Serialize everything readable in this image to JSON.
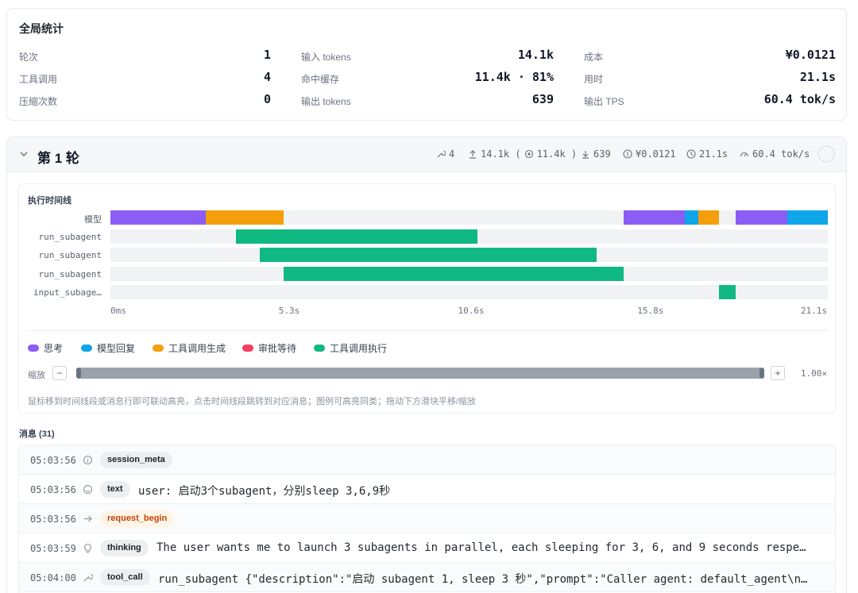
{
  "global": {
    "title": "全局统计",
    "stats": [
      {
        "label": "轮次",
        "value": "1"
      },
      {
        "label": "输入 tokens",
        "value": "14.1k"
      },
      {
        "label": "成本",
        "value": "¥0.0121"
      },
      {
        "label": "工具调用",
        "value": "4"
      },
      {
        "label": "命中缓存",
        "value": "11.4k · 81%"
      },
      {
        "label": "用时",
        "value": "21.1s"
      },
      {
        "label": "压缩次数",
        "value": "0"
      },
      {
        "label": "输出 tokens",
        "value": "639"
      },
      {
        "label": "输出 TPS",
        "value": "60.4 tok/s"
      }
    ]
  },
  "round": {
    "title": "第 1 轮",
    "meta": {
      "tools": "4",
      "input": "14.1k (",
      "cached": "11.4k )",
      "output": "639",
      "cost": "¥0.0121",
      "time": "21.1s",
      "tps": "60.4 tok/s"
    }
  },
  "timeline": {
    "title": "执行时间线",
    "total_seconds": 21.1,
    "rows": [
      {
        "label": "模型",
        "segments": [
          {
            "kind": "thinking",
            "start": 0.0,
            "end": 2.8
          },
          {
            "kind": "toolgen",
            "start": 2.8,
            "end": 5.1
          },
          {
            "kind": "thinking",
            "start": 15.1,
            "end": 16.9
          },
          {
            "kind": "reply",
            "start": 16.9,
            "end": 17.3
          },
          {
            "kind": "toolgen",
            "start": 17.3,
            "end": 17.9
          },
          {
            "kind": "thinking",
            "start": 18.4,
            "end": 19.9
          },
          {
            "kind": "reply",
            "start": 19.9,
            "end": 21.1
          }
        ]
      },
      {
        "label": "run_subagent",
        "segments": [
          {
            "kind": "toolexec",
            "start": 3.7,
            "end": 10.8
          }
        ]
      },
      {
        "label": "run_subagent",
        "segments": [
          {
            "kind": "toolexec",
            "start": 4.4,
            "end": 14.3
          }
        ]
      },
      {
        "label": "run_subagent",
        "segments": [
          {
            "kind": "toolexec",
            "start": 5.1,
            "end": 15.1
          }
        ]
      },
      {
        "label": "input_subage…",
        "segments": [
          {
            "kind": "toolexec",
            "start": 17.9,
            "end": 18.4
          }
        ]
      }
    ],
    "ticks": [
      "0ms",
      "5.3s",
      "10.6s",
      "15.8s",
      "21.1s"
    ],
    "legend": [
      {
        "key": "thinking",
        "label": "思考"
      },
      {
        "key": "reply",
        "label": "模型回复"
      },
      {
        "key": "toolgen",
        "label": "工具调用生成"
      },
      {
        "key": "approval",
        "label": "审批等待"
      },
      {
        "key": "toolexec",
        "label": "工具调用执行"
      }
    ],
    "colors": {
      "thinking": "#8b5cf6",
      "reply": "#0ea5e9",
      "toolgen": "#f59e0b",
      "approval": "#f43f5e",
      "toolexec": "#10b981"
    },
    "zoom_label": "缩放",
    "zoom_minus": "−",
    "zoom_plus": "+",
    "zoom_value": "1.00×",
    "zoom_fraction": 1.0,
    "hint": "鼠标移到时间线段或消息行即可联动高亮，点击时间线段跳转到对应消息；图例可高亮同类；拖动下方滑块平移/缩放"
  },
  "messages": {
    "title": "消息 (31)",
    "items": [
      {
        "time": "05:03:56",
        "icon": "info-icon",
        "tag": "session_meta",
        "tag_style": "plain",
        "text": ""
      },
      {
        "time": "05:03:56",
        "icon": "user-icon",
        "tag": "text",
        "tag_style": "plain",
        "text": "user: 启动3个subagent，分别sleep 3,6,9秒"
      },
      {
        "time": "05:03:56",
        "icon": "arrow-right-icon",
        "tag": "request_begin",
        "tag_style": "warn",
        "text": ""
      },
      {
        "time": "05:03:59",
        "icon": "bulb-icon",
        "tag": "thinking",
        "tag_style": "plain",
        "text": "The user wants me to launch 3 subagents in parallel, each sleeping for 3, 6, and 9 seconds respe…"
      },
      {
        "time": "05:04:00",
        "icon": "wrench-icon",
        "tag": "tool_call",
        "tag_style": "plain",
        "text": "run_subagent {\"description\":\"启动 subagent 1, sleep 3 秒\",\"prompt\":\"Caller agent: default_agent\\n…"
      }
    ]
  }
}
